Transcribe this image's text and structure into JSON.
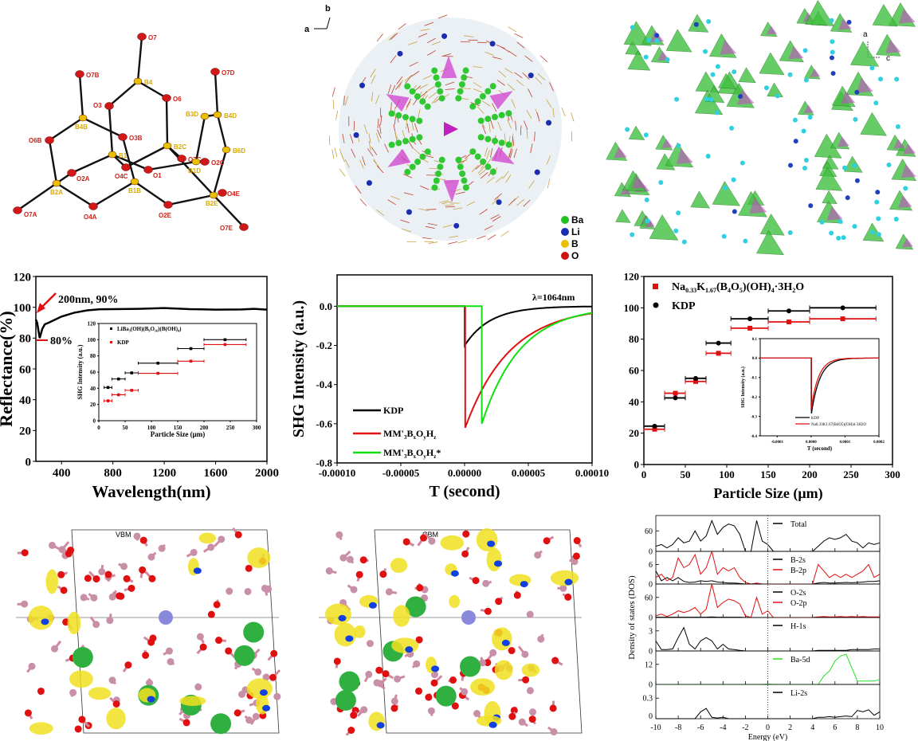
{
  "molecule": {
    "title_labels": [
      "O7",
      "O7B",
      "B4",
      "O6",
      "O3",
      "B3D",
      "B4D",
      "O7D",
      "O3B",
      "O6B",
      "B4B",
      "B2C",
      "B1",
      "B6D",
      "O7C",
      "O2C",
      "B1D",
      "O4C",
      "O1",
      "O2A",
      "B1B",
      "B2A",
      "O4E",
      "B2E",
      "O4A",
      "O2E",
      "O7A",
      "O7E"
    ]
  },
  "structure1": {
    "axis_a": "a",
    "axis_b": "b",
    "legend": [
      "Ba",
      "Li",
      "B",
      "O"
    ],
    "legend_colors": [
      "#22c022",
      "#1a2cb0",
      "#e8c000",
      "#d01010"
    ]
  },
  "structure2": {
    "axis_a": "a",
    "axis_c": "c"
  },
  "vbm": {
    "label": "VBM"
  },
  "cbm": {
    "label": "CBM"
  },
  "chart_data": [
    {
      "id": "reflectance",
      "type": "line",
      "xlabel": "Wavelength(nm)",
      "ylabel": "Reflectance(%)",
      "xlim": [
        200,
        2000
      ],
      "ylim": [
        0,
        120
      ],
      "xticks": [
        400,
        800,
        1200,
        1600,
        2000
      ],
      "yticks": [
        0,
        20,
        40,
        60,
        80,
        100,
        120
      ],
      "series": [
        {
          "name": "Reflectance",
          "color": "#000000",
          "x": [
            200,
            210,
            230,
            250,
            270,
            300,
            400,
            500,
            600,
            700,
            800,
            1000,
            1200,
            1400,
            1600,
            1800,
            1900,
            2000
          ],
          "y": [
            92,
            90,
            80,
            86,
            89,
            90,
            94,
            96.5,
            98,
            98.7,
            98.8,
            99,
            99.5,
            98.8,
            98.5,
            98.6,
            99,
            98.5
          ]
        }
      ],
      "annotations": [
        {
          "text": "200nm, 90%",
          "x": 200,
          "y": 90,
          "color": "#e01010"
        },
        {
          "text": "80%",
          "x": 230,
          "y": 80,
          "color": "#e01010"
        }
      ],
      "inset": {
        "type": "scatter",
        "xlabel": "Particle Size (μm)",
        "ylabel": "SHG Intensity (a.u.)",
        "xlim": [
          0,
          300
        ],
        "ylim": [
          0,
          120
        ],
        "xticks": [
          0,
          50,
          100,
          150,
          200,
          250,
          300
        ],
        "yticks": [
          0,
          20,
          40,
          60,
          80,
          100,
          120
        ],
        "series": [
          {
            "name": "LiBa₃(OH)(B₉O₁₆)(B(OH)₄)",
            "color": "#000000",
            "x": [
              17.5,
              37.5,
              62.5,
              112.5,
              175,
              240
            ],
            "y": [
              41,
              51.5,
              59,
              71,
              89,
              100
            ],
            "xlo": [
              10,
              25,
              50,
              75,
              150,
              200
            ],
            "xhi": [
              25,
              50,
              75,
              150,
              200,
              280
            ]
          },
          {
            "name": "KDP",
            "color": "#e01010",
            "x": [
              17.5,
              37.5,
              62.5,
              112.5,
              175,
              240
            ],
            "y": [
              24.5,
              32,
              37.5,
              58.5,
              73.5,
              94
            ],
            "xlo": [
              10,
              25,
              50,
              75,
              150,
              200
            ],
            "xhi": [
              25,
              50,
              75,
              150,
              200,
              280
            ]
          }
        ]
      }
    },
    {
      "id": "shg-time",
      "type": "line",
      "xlabel": "T (second)",
      "ylabel": "SHG Intensity (a.u.)",
      "xlim": [
        -0.0001,
        0.0001
      ],
      "ylim": [
        -0.8,
        0.16
      ],
      "xticks": [
        -0.0001,
        -5e-05,
        0,
        5e-05,
        0.0001
      ],
      "xticklabels": [
        "-0.00010",
        "-0.00005",
        "0.00000",
        "0.00005",
        "0.00010"
      ],
      "yticks": [
        0,
        -0.2,
        -0.4,
        -0.6,
        -0.8
      ],
      "yticklabels": [
        "0.0",
        "-0.2",
        "-0.4",
        "-0.6",
        "-0.8"
      ],
      "annotation": "λ=1064nm",
      "series": [
        {
          "name": "KDP",
          "color": "#000000",
          "onset": 1e-07,
          "peak": -0.2,
          "decay": 2e-05
        },
        {
          "name": "MM'₃BₓOᵧH_z",
          "label_main": "MM'",
          "label_sub": "3",
          "label_rest": [
            "B",
            "x",
            "O",
            "y",
            "H",
            "z"
          ],
          "color": "#e01010",
          "onset": 5e-07,
          "peak": -0.62,
          "decay": 3.5e-05
        },
        {
          "name": "MM'₃BₓOᵧH_z*",
          "label_main": "MM'",
          "label_sub": "3",
          "label_rest": [
            "B",
            "x",
            "O",
            "y",
            "H",
            "z"
          ],
          "label_suffix": "*",
          "color": "#10e010",
          "onset": 1.35e-05,
          "peak": -0.6,
          "decay": 3e-05
        }
      ]
    },
    {
      "id": "particle-size",
      "type": "scatter",
      "xlabel": "Particle Size (μm)",
      "ylabel": "",
      "xlim": [
        0,
        300
      ],
      "ylim": [
        0,
        120
      ],
      "xticks": [
        0,
        50,
        100,
        150,
        200,
        250,
        300
      ],
      "yticks": [
        0,
        20,
        40,
        60,
        80,
        100,
        120
      ],
      "series": [
        {
          "name": "Na0.33K1.67(B4O5)(OH)4·3H2O",
          "color": "#e01010",
          "marker": "square",
          "x": [
            13,
            38,
            62.5,
            90,
            128,
            175,
            240
          ],
          "y": [
            22.5,
            45.5,
            53,
            71,
            87,
            91,
            93
          ],
          "xlo": [
            0,
            25,
            50,
            75,
            105,
            150,
            200
          ],
          "xhi": [
            25,
            50,
            75,
            105,
            150,
            200,
            280
          ]
        },
        {
          "name": "KDP",
          "color": "#000000",
          "marker": "circle",
          "x": [
            13,
            38,
            62.5,
            90,
            128,
            175,
            240
          ],
          "y": [
            24.5,
            42.5,
            55,
            77.5,
            93,
            98,
            100
          ],
          "xlo": [
            0,
            25,
            50,
            75,
            105,
            150,
            200
          ],
          "xhi": [
            25,
            50,
            75,
            105,
            150,
            200,
            280
          ]
        }
      ],
      "legend_text": {
        "red": [
          "Na",
          "0.33",
          "K",
          "1.67",
          "(B",
          "4",
          "O",
          "5",
          ")(OH)",
          "4",
          "·3H",
          "2",
          "O"
        ],
        "black": "KDP"
      },
      "inset": {
        "type": "line",
        "xlabel": "T (second)",
        "ylabel": "SHG Intensity (a.u.)",
        "xlim": [
          -0.00015,
          0.0002
        ],
        "ylim": [
          -0.4,
          0.1
        ],
        "xticks": [
          -0.0001,
          0,
          0.0001,
          0.0002
        ],
        "xticklabels": [
          "-0.0001",
          "0.0000",
          "0.0001",
          "0.0002"
        ],
        "yticks": [
          0.1,
          0,
          -0.1,
          -0.2,
          -0.3,
          -0.4
        ],
        "yticklabels": [
          "0.1",
          "0.0",
          "-0.1",
          "-0.2",
          "-0.3",
          "-0.4"
        ],
        "series": [
          {
            "name": "KDP",
            "color": "#000000",
            "onset": 1e-06,
            "peak": -0.285,
            "decay": 2.5e-05
          },
          {
            "name": "Na0.33K1.67(B4O5)(OH)4·3H2O",
            "color": "#e01010",
            "onset": 0,
            "peak": -0.265,
            "decay": 2.2e-05
          }
        ]
      }
    },
    {
      "id": "dos",
      "type": "line",
      "xlabel": "Energy (eV)",
      "ylabel": "Density of states (DOS)",
      "xlim": [
        -10,
        10
      ],
      "xticks": [
        -10,
        -8,
        -6,
        -4,
        -2,
        0,
        2,
        4,
        6,
        8,
        10
      ],
      "x": [
        -10,
        -9.5,
        -9,
        -8.5,
        -8,
        -7.5,
        -7,
        -6.5,
        -6,
        -5.5,
        -5,
        -4.5,
        -4,
        -3.5,
        -3,
        -2.5,
        -2,
        -1.5,
        -1,
        -0.5,
        0,
        0.5,
        1,
        1.5,
        2,
        2.5,
        3,
        3.5,
        4,
        4.5,
        5,
        5.5,
        6,
        6.5,
        7,
        7.5,
        8,
        8.5,
        9,
        9.5,
        10
      ],
      "panels": [
        {
          "ylim": [
            0,
            105
          ],
          "yticks": [
            0,
            60
          ],
          "series": [
            {
              "name": "Total",
              "color": "#000000",
              "y": [
                15,
                20,
                10,
                20,
                40,
                25,
                30,
                60,
                30,
                45,
                90,
                50,
                70,
                80,
                75,
                50,
                0,
                0,
                90,
                30,
                20,
                0,
                0,
                0,
                0,
                0,
                0,
                0,
                0,
                15,
                30,
                40,
                35,
                40,
                50,
                30,
                25,
                10,
                25,
                20,
                25
              ]
            }
          ]
        },
        {
          "ylim": [
            0,
            10
          ],
          "yticks": [
            0,
            6
          ],
          "series": [
            {
              "name": "B-2s",
              "color": "#000000",
              "y": [
                4,
                1,
                2,
                1,
                2,
                0.8,
                0.5,
                0.6,
                1,
                0.8,
                1,
                0.6,
                0.5,
                0.3,
                0.3,
                0.2,
                0,
                0,
                0.1,
                0,
                0,
                0,
                0,
                0,
                0,
                0,
                0,
                0,
                0,
                0.3,
                0.5,
                0.3,
                0.3,
                0.4,
                0.5,
                0.4,
                0.5,
                0.6,
                0.8,
                0.8,
                1
              ]
            },
            {
              "name": "B-2p",
              "color": "#e01010",
              "y": [
                2,
                3,
                1,
                2,
                8,
                5,
                6,
                9,
                3,
                5,
                10,
                3,
                5,
                4,
                5,
                2,
                0.5,
                0,
                0.3,
                0,
                0,
                0,
                0,
                0,
                0,
                0,
                0,
                0,
                0,
                6,
                4,
                2,
                3,
                2,
                3,
                2,
                3,
                4,
                6,
                2,
                3
              ]
            }
          ]
        },
        {
          "ylim": [
            0,
            100
          ],
          "yticks": [
            0,
            60
          ],
          "series": [
            {
              "name": "O-2s",
              "color": "#000000",
              "y": [
                1,
                1,
                1,
                1,
                1,
                1,
                1,
                1,
                1,
                1,
                2,
                1,
                1,
                1,
                1,
                1,
                0,
                0,
                0,
                0,
                0,
                0,
                0,
                0,
                0,
                0,
                0,
                0,
                0,
                0.5,
                0.5,
                0.5,
                0.5,
                0.5,
                0.5,
                0.5,
                0.5,
                0.5,
                0.5,
                0.5,
                0.5
              ]
            },
            {
              "name": "O-2p",
              "color": "#e01010",
              "y": [
                5,
                10,
                3,
                10,
                20,
                15,
                20,
                30,
                10,
                25,
                100,
                30,
                45,
                55,
                50,
                40,
                5,
                0,
                60,
                10,
                20,
                0,
                0,
                0,
                0,
                0,
                0,
                0,
                0,
                2,
                3,
                2,
                2,
                3,
                2,
                3,
                2,
                3,
                2,
                2,
                2
              ]
            }
          ]
        },
        {
          "ylim": [
            0,
            5
          ],
          "yticks": [
            0,
            3
          ],
          "series": [
            {
              "name": "H-1s",
              "color": "#000000",
              "y": [
                1.5,
                0.2,
                0.2,
                0.3,
                2,
                3.5,
                1,
                0.3,
                1.5,
                2,
                1.5,
                0.3,
                1,
                0.3,
                0.2,
                0.1,
                0,
                0,
                0,
                0,
                0,
                0,
                0,
                0,
                0,
                0,
                0,
                0,
                0,
                0.1,
                0.1,
                0.1,
                0.1,
                0.1,
                0.1,
                0.2,
                0.2,
                0.2,
                0.2,
                0.3,
                0.3
              ]
            }
          ]
        },
        {
          "ylim": [
            0,
            20
          ],
          "yticks": [
            0,
            12
          ],
          "series": [
            {
              "name": "Ba-5d",
              "color": "#20e020",
              "y": [
                0,
                0,
                0,
                0,
                0,
                0,
                0,
                0,
                0,
                0,
                0,
                0,
                0,
                0,
                0,
                0,
                0,
                0,
                0,
                0,
                0.2,
                0,
                0,
                0,
                0,
                0,
                0,
                0,
                0,
                0,
                5,
                8,
                14,
                17,
                18,
                10,
                2,
                2,
                2,
                2,
                3
              ]
            }
          ]
        },
        {
          "ylim": [
            0,
            0.5
          ],
          "yticks": [
            0,
            0.3
          ],
          "series": [
            {
              "name": "Li-2s",
              "color": "#000000",
              "y": [
                0,
                0,
                0,
                0,
                0,
                0,
                0,
                0,
                0.1,
                0.15,
                0.02,
                0.01,
                0.02,
                0,
                0,
                0,
                0,
                0,
                0,
                0,
                0,
                0,
                0,
                0,
                0,
                0,
                0,
                0,
                0,
                0.02,
                0.02,
                0.03,
                0.02,
                0.03,
                0.04,
                0.03,
                0.12,
                0.1,
                0.13,
                0.05,
                0.1
              ]
            }
          ]
        }
      ]
    }
  ]
}
